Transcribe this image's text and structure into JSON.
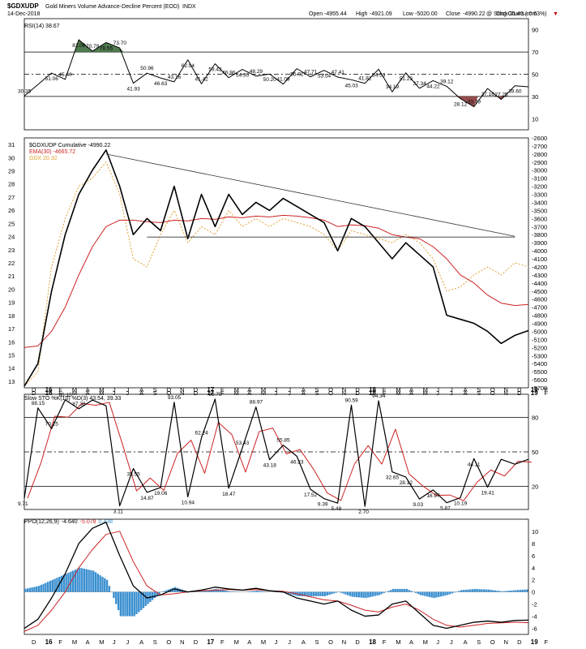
{
  "header": {
    "symbol": "$GDXUDP",
    "description": "Gold Miners Volume Advance-Decline Percent (EOD)",
    "exchange": "INDX",
    "date": "14-Dec-2018",
    "open_label": "Open",
    "open": "-4955.44",
    "high_label": "High",
    "high": "-4921.09",
    "low_label": "Low",
    "low": "-5020.00",
    "close_label": "Close",
    "close": "-4990.22",
    "chg_label": "Chg",
    "chg": "-31.43 (-0.63%)",
    "chg_arrow": "▼",
    "watermark": "@ StockCharts.com"
  },
  "colors": {
    "price": "#000000",
    "ema": "#cc2222",
    "gdx": "#e0a030",
    "rsi_over": "#3d6b3d",
    "rsi_under": "#8b3a3a",
    "histogram": "#3a8fd0"
  },
  "chart_data": [
    {
      "type": "line",
      "panel": "rsi",
      "legend": "RSI(14) 38.67",
      "ylim": [
        0,
        100
      ],
      "yticks": [
        10,
        30,
        50,
        70,
        90
      ],
      "reference_lines": [
        30,
        50,
        70
      ],
      "x": [
        0,
        2,
        3,
        4,
        5,
        6,
        7,
        8,
        9,
        10,
        11,
        12,
        13,
        14,
        15,
        16,
        17,
        18,
        19,
        20,
        21,
        22,
        23,
        24,
        25,
        26,
        27,
        28,
        29,
        30,
        31,
        32,
        33,
        34,
        35,
        36,
        37
      ],
      "values": [
        30.35,
        51.06,
        45.4,
        81.06,
        70.79,
        78.55,
        73.7,
        41.93,
        50.96,
        46.63,
        43.16,
        62.94,
        41.42,
        59.42,
        46.9,
        54.3,
        48.29,
        50.2,
        41.09,
        55.02,
        47.71,
        53.54,
        47.41,
        45.03,
        41.82,
        54.53,
        34.19,
        51.23,
        37.34,
        44.22,
        39.12,
        28.12,
        20.79,
        37.16,
        27.25,
        39.6,
        38.67
      ],
      "labels": [
        "30.35",
        "51.06",
        "45.40",
        "81.06",
        "70.79",
        "78.55",
        "73.70",
        "41.93",
        "50.96",
        "46.63",
        "43.16",
        "62.94",
        "41.42",
        "59.42",
        "46.90",
        "54.30",
        "48.29",
        "50.20",
        "41.09",
        "55.02",
        "47.71",
        "53.54",
        "47.41",
        "45.03",
        "41.82",
        "54.53",
        "34.19",
        "51.23",
        "37.34",
        "44.22",
        "39.12",
        "28.12",
        "20.79",
        "37.16",
        "27.25",
        "39.60",
        ""
      ]
    },
    {
      "type": "line",
      "panel": "price",
      "title": "$GDXUDP Cumulative -4990.22",
      "ylim": [
        -5700,
        -2600
      ],
      "yticks": [
        -2600,
        -2700,
        -2800,
        -2900,
        -3000,
        -3100,
        -3200,
        -3300,
        -3400,
        -3500,
        -3600,
        -3700,
        -3800,
        -3900,
        -4000,
        -4100,
        -4200,
        -4300,
        -4400,
        -4500,
        -4600,
        -4700,
        -4800,
        -4900,
        -5000,
        -5100,
        -5200,
        -5300,
        -5400,
        -5500,
        -5600,
        -5700
      ],
      "left_ticks": [
        13,
        14,
        15,
        16,
        17,
        18,
        19,
        20,
        21,
        22,
        23,
        24,
        25,
        26,
        27,
        28,
        29,
        30,
        31
      ],
      "left_ylim": [
        12.5,
        31.5
      ],
      "x": [
        0,
        1,
        2,
        3,
        4,
        5,
        6,
        7,
        8,
        9,
        10,
        11,
        12,
        13,
        14,
        15,
        16,
        17,
        18,
        19,
        20,
        21,
        22,
        23,
        24,
        25,
        26,
        27,
        28,
        29,
        30,
        31,
        32,
        33,
        34,
        35,
        36,
        37
      ],
      "series": [
        {
          "name": "$GDXUDP Cumulative -4990.22",
          "values": [
            -5680,
            -5400,
            -4500,
            -3800,
            -3300,
            -3000,
            -2750,
            -3200,
            -3800,
            -3600,
            -3750,
            -3200,
            -3850,
            -3300,
            -3700,
            -3300,
            -3550,
            -3400,
            -3500,
            -3350,
            -3450,
            -3550,
            -3650,
            -4000,
            -3600,
            -3700,
            -3900,
            -4100,
            -3900,
            -4050,
            -4200,
            -4800,
            -4850,
            -4900,
            -5000,
            -5150,
            -5050,
            -4990
          ]
        },
        {
          "name": "EMA(30) -4665.72",
          "values": [
            -5200,
            -5180,
            -5000,
            -4700,
            -4300,
            -3950,
            -3700,
            -3620,
            -3620,
            -3640,
            -3650,
            -3620,
            -3630,
            -3600,
            -3610,
            -3580,
            -3590,
            -3570,
            -3580,
            -3560,
            -3570,
            -3590,
            -3620,
            -3700,
            -3680,
            -3690,
            -3720,
            -3800,
            -3830,
            -3850,
            -3950,
            -4100,
            -4300,
            -4400,
            -4550,
            -4650,
            -4680,
            -4666
          ]
        },
        {
          "name": "GDX 20.32",
          "values": [
            -5680,
            -5500,
            -4200,
            -3600,
            -3200,
            -3100,
            -2900,
            -3300,
            -4100,
            -4200,
            -3800,
            -3500,
            -3900,
            -3700,
            -3800,
            -3500,
            -3700,
            -3600,
            -3700,
            -3600,
            -3650,
            -3700,
            -3800,
            -4000,
            -3750,
            -3800,
            -3850,
            -3900,
            -3800,
            -3900,
            -4100,
            -4500,
            -4450,
            -4300,
            -4200,
            -4300,
            -4150,
            -4200
          ]
        }
      ],
      "trendlines": [
        [
          [
            6,
            -2800
          ],
          [
            36,
            -3820
          ]
        ],
        [
          [
            9,
            -3830
          ],
          [
            36,
            -3830
          ]
        ]
      ],
      "levels": [
        {
          "label": "-4665.72",
          "value": -4666
        },
        {
          "label": "-4990.22",
          "value": -4990
        }
      ]
    },
    {
      "type": "line",
      "panel": "stochastic",
      "legend": "Slow STO %K(10) %D(3) 43.54, 39.33",
      "ylim": [
        0,
        100
      ],
      "yticks": [
        20,
        50,
        80
      ],
      "x": [
        0,
        1,
        2,
        3,
        4,
        5,
        6,
        7,
        8,
        9,
        10,
        11,
        12,
        13,
        14,
        15,
        16,
        17,
        18,
        19,
        20,
        21,
        22,
        23,
        24,
        25,
        26,
        27,
        28,
        29,
        30,
        31,
        32,
        33,
        34,
        35,
        36,
        37
      ],
      "values": [
        9.71,
        88.15,
        70.15,
        95.15,
        87.38,
        95.0,
        90.0,
        3.11,
        35.55,
        14.87,
        19.06,
        93.05,
        10.94,
        62.24,
        95.78,
        18.47,
        53.43,
        88.97,
        43.18,
        55.85,
        46.23,
        17.52,
        9.39,
        5.48,
        90.59,
        2.7,
        94.34,
        32.65,
        28.12,
        9.03,
        16.97,
        5.87,
        10.19,
        44.11,
        19.41,
        43.54,
        39.33,
        43.54
      ],
      "labels": [
        "9.71",
        "88.15",
        "70.15",
        "95.15",
        "87.38",
        "",
        "",
        "3.11",
        "35.55",
        "14.87",
        "19.06",
        "93.05",
        "10.94",
        "62.24",
        "95.78",
        "18.47",
        "53.43",
        "88.97",
        "43.18",
        "55.85",
        "46.23",
        "17.52",
        "9.39",
        "5.48",
        "90.59",
        "2.70",
        "94.34",
        "32.65",
        "28.12",
        "9.03",
        "16.97",
        "5.87",
        "10.19",
        "44.11",
        "19.41",
        "",
        "",
        ""
      ]
    },
    {
      "type": "line",
      "panel": "ppo",
      "legend_name": "PPO(12,26,9)",
      "legend_values": [
        "-4.640",
        "-5.078",
        "0.438"
      ],
      "ylim": [
        -7,
        12
      ],
      "yticks": [
        -6,
        -4,
        -2,
        0,
        2,
        4,
        6,
        8,
        10
      ],
      "x": [
        0,
        1,
        2,
        3,
        4,
        5,
        6,
        7,
        8,
        9,
        10,
        11,
        12,
        13,
        14,
        15,
        16,
        17,
        18,
        19,
        20,
        21,
        22,
        23,
        24,
        25,
        26,
        27,
        28,
        29,
        30,
        31,
        32,
        33,
        34,
        35,
        36,
        37
      ],
      "series": [
        {
          "name": "PPO",
          "values": [
            -6,
            -4.5,
            -1,
            3,
            8,
            10.5,
            11.5,
            6,
            1,
            -1,
            -0.5,
            0.5,
            0,
            0.3,
            0.8,
            0.5,
            0.3,
            0.6,
            0.2,
            0,
            -1,
            -1.5,
            -2,
            -1.5,
            -3,
            -4,
            -3.8,
            -2,
            -1.5,
            -3.5,
            -5.5,
            -6,
            -5.5,
            -5,
            -4.8,
            -5,
            -4.7,
            -4.64
          ]
        },
        {
          "name": "Signal",
          "values": [
            -6.5,
            -5.5,
            -3,
            0,
            4,
            7,
            9.5,
            10,
            5,
            1,
            -0.5,
            -0.3,
            0,
            0.2,
            0.3,
            0.4,
            0.3,
            0.4,
            0.2,
            0.1,
            -0.3,
            -0.8,
            -1.3,
            -1.5,
            -2.2,
            -3,
            -3.3,
            -2.5,
            -2,
            -3,
            -4.5,
            -5.5,
            -5.8,
            -5.5,
            -5.2,
            -5.1,
            -5.0,
            -5.078
          ]
        },
        {
          "name": "Histogram",
          "values": [
            0.5,
            1,
            2,
            3,
            4,
            3.5,
            2,
            -4,
            -4,
            -2,
            0,
            0.8,
            0,
            0.1,
            0.5,
            0.1,
            0,
            0.2,
            0,
            -0.1,
            -0.7,
            -0.7,
            -0.7,
            0,
            -0.8,
            -1,
            -0.5,
            0.5,
            0.5,
            -0.5,
            -1,
            -0.5,
            0.3,
            0.5,
            0.4,
            0.1,
            0.3,
            0.438
          ]
        }
      ]
    }
  ],
  "x_axis": {
    "month_labels": [
      "D",
      "16",
      "F",
      "M",
      "A",
      "M",
      "J",
      "J",
      "A",
      "S",
      "O",
      "N",
      "D",
      "17",
      "F",
      "M",
      "A",
      "M",
      "J",
      "J",
      "A",
      "S",
      "O",
      "N",
      "D",
      "18",
      "F",
      "M",
      "A",
      "M",
      "J",
      "J",
      "A",
      "S",
      "O",
      "N",
      "D",
      "19",
      "F"
    ]
  }
}
